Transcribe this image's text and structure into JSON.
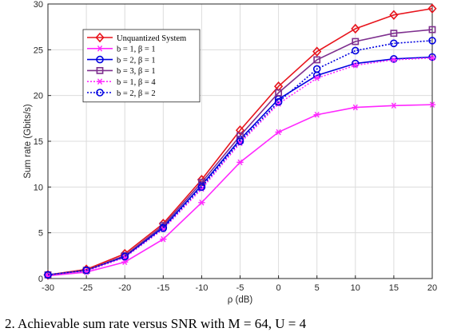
{
  "chart_data": {
    "type": "line",
    "xlabel": "ρ (dB)",
    "ylabel": "Sum rate (Gbits/s)",
    "xlim": [
      -30,
      20
    ],
    "ylim": [
      0,
      30
    ],
    "xticks": [
      "-30",
      "-25",
      "-20",
      "-15",
      "-10",
      "-5",
      "0",
      "5",
      "10",
      "15",
      "20"
    ],
    "yticks": [
      "0",
      "5",
      "10",
      "15",
      "20",
      "25",
      "30"
    ],
    "grid": true,
    "legend_position": "top-left",
    "x": [
      -30,
      -25,
      -20,
      -15,
      -10,
      -5,
      0,
      5,
      10,
      15,
      20
    ],
    "series": [
      {
        "name": "Unquantized System",
        "values": [
          0.4,
          1.0,
          2.7,
          6.0,
          10.8,
          16.2,
          21.0,
          24.8,
          27.3,
          28.8,
          29.5
        ],
        "color": "#e8141c",
        "marker": "diamond",
        "dash": "solid"
      },
      {
        "name": "b = 1, β = 1",
        "values": [
          0.3,
          0.7,
          1.8,
          4.3,
          8.3,
          12.7,
          16.0,
          17.9,
          18.7,
          18.9,
          19.0
        ],
        "color": "#ff28ff",
        "marker": "asterisk",
        "dash": "solid"
      },
      {
        "name": "b = 2, β = 1",
        "values": [
          0.4,
          0.9,
          2.4,
          5.6,
          10.2,
          15.2,
          19.6,
          22.2,
          23.5,
          24.0,
          24.2
        ],
        "color": "#0000e0",
        "marker": "circle",
        "dash": "solid"
      },
      {
        "name": "b = 3, β = 1",
        "values": [
          0.4,
          0.9,
          2.5,
          5.8,
          10.5,
          15.6,
          20.3,
          23.9,
          25.9,
          26.8,
          27.2
        ],
        "color": "#7e2f8e",
        "marker": "square",
        "dash": "solid"
      },
      {
        "name": "b = 1, β = 4",
        "values": [
          0.4,
          0.8,
          2.3,
          5.4,
          9.8,
          14.8,
          19.1,
          21.9,
          23.3,
          23.9,
          24.1
        ],
        "color": "#ff28ff",
        "marker": "asterisk",
        "dash": "dotted"
      },
      {
        "name": "b = 2, β = 2",
        "values": [
          0.4,
          0.9,
          2.4,
          5.5,
          10.0,
          15.0,
          19.3,
          22.9,
          24.9,
          25.7,
          26.0
        ],
        "color": "#0000e0",
        "marker": "circle",
        "dash": "dotted"
      }
    ],
    "caption": "2. Achievable sum rate versus SNR with M = 64, U = 4"
  }
}
